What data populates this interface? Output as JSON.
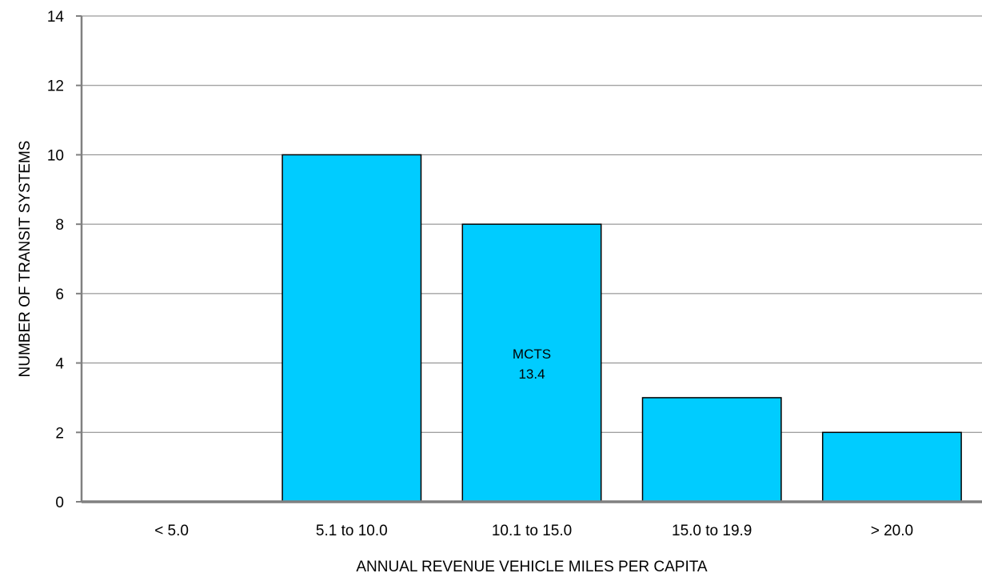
{
  "chart_data": {
    "type": "bar",
    "title": "",
    "xlabel": "ANNUAL REVENUE VEHICLE MILES PER CAPITA",
    "ylabel": "NUMBER OF TRANSIT SYSTEMS",
    "categories": [
      "< 5.0",
      "5.1 to 10.0",
      "10.1 to 15.0",
      "15.0 to 19.9",
      "> 20.0"
    ],
    "values": [
      0,
      10,
      8,
      3,
      2
    ],
    "ylim": [
      0,
      14
    ],
    "yticks": [
      0,
      2,
      4,
      6,
      8,
      10,
      12,
      14
    ],
    "grid": true,
    "legend": "none",
    "bar_color": "#00ccff",
    "annotations": [
      {
        "category": "10.1 to 15.0",
        "lines": [
          "MCTS",
          "13.4"
        ]
      }
    ]
  }
}
